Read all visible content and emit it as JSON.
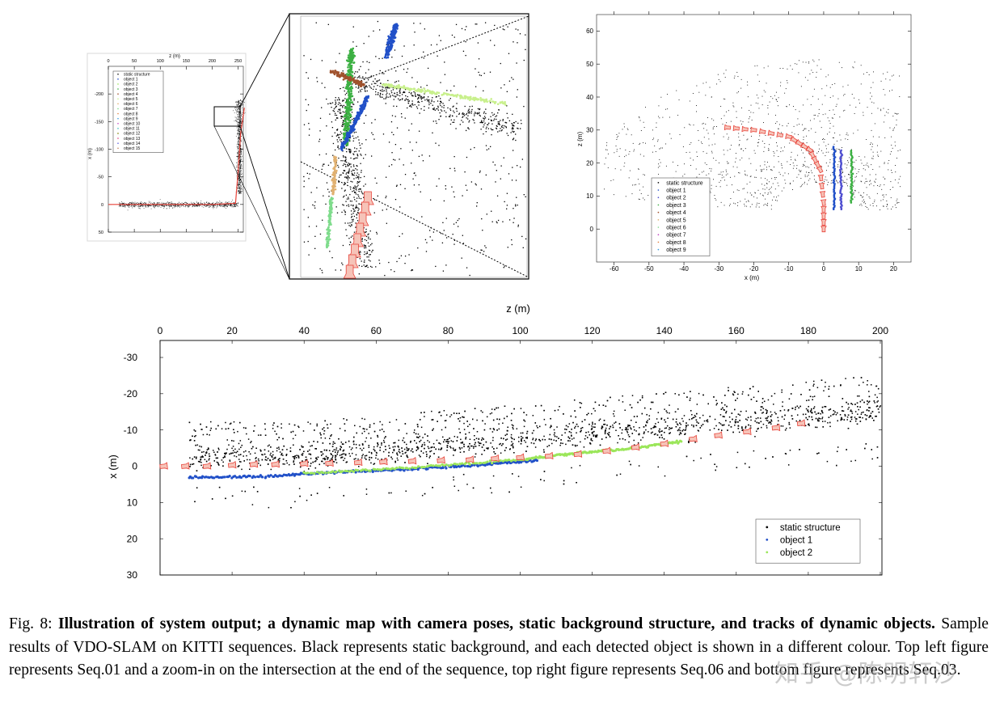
{
  "colors": {
    "static": "#000000",
    "camera": "#e8433a",
    "camera_fill": "#f6c3b8",
    "object1": "#2150c8",
    "object2": "#9be65a",
    "object3": "#3cb043",
    "object4": "#a0522d",
    "object5": "#c8f08c",
    "object6": "#e0b070",
    "object7": "#7fdc8c"
  },
  "chart_data": [
    {
      "id": "seq01_overview",
      "type": "scatter",
      "title": "",
      "xlabel": "z (m)",
      "ylabel": "x (m)",
      "xlim": [
        0,
        260
      ],
      "ylim": [
        50,
        -250
      ],
      "x_ticks": [
        "0",
        "50",
        "100",
        "150",
        "200",
        "250"
      ],
      "y_ticks": [
        "-200",
        "-150",
        "-100",
        "-50",
        "0",
        "50"
      ],
      "legend": [
        "static structure",
        "object  1",
        "object  2",
        "object  3",
        "object  4",
        "object  5",
        "object  6",
        "object  7",
        "object  8",
        "object  9",
        "object  10",
        "object  11",
        "object  12",
        "object  13",
        "object  14",
        "object  15"
      ],
      "legend_position": "top-left",
      "camera_path": [
        [
          0,
          0
        ],
        [
          100,
          0
        ],
        [
          200,
          0
        ],
        [
          245,
          -2
        ],
        [
          250,
          -60
        ],
        [
          255,
          -130
        ],
        [
          262,
          -175
        ]
      ],
      "grid": false
    },
    {
      "id": "seq01_zoom",
      "type": "scatter",
      "title": "",
      "xlabel": "",
      "ylabel": "",
      "description_series": [
        "static structure",
        "object tracks",
        "camera poses"
      ],
      "grid": false
    },
    {
      "id": "seq06",
      "type": "scatter",
      "title": "",
      "xlabel": "x (m)",
      "ylabel": "z (m)",
      "xlim": [
        -65,
        25
      ],
      "ylim": [
        -10,
        65
      ],
      "x_ticks": [
        "-60",
        "-50",
        "-40",
        "-30",
        "-20",
        "-10",
        "0",
        "10",
        "20"
      ],
      "y_ticks": [
        "0",
        "10",
        "20",
        "30",
        "40",
        "50",
        "60"
      ],
      "legend": [
        "static structure",
        "object  1",
        "object  2",
        "object  3",
        "object  4",
        "object  5",
        "object  6",
        "object  7",
        "object  8",
        "object  9"
      ],
      "legend_position": "bottom-left",
      "camera_path": [
        [
          0,
          0
        ],
        [
          0,
          8
        ],
        [
          -1,
          18
        ],
        [
          -4,
          24
        ],
        [
          -10,
          28
        ],
        [
          -20,
          30
        ],
        [
          -30,
          31
        ]
      ],
      "object_tracks": [
        {
          "name": "object  1",
          "x": 3,
          "z_range": [
            6,
            25
          ]
        },
        {
          "name": "object  2",
          "x": 5,
          "z_range": [
            6,
            24
          ]
        },
        {
          "name": "object  3",
          "x": 8,
          "z_range": [
            8,
            24
          ]
        }
      ],
      "grid": false
    },
    {
      "id": "seq03",
      "type": "scatter",
      "title": "",
      "xlabel": "z (m)",
      "ylabel": "x (m)",
      "xlim": [
        0,
        200
      ],
      "ylim": [
        30,
        -30
      ],
      "x_ticks": [
        "0",
        "20",
        "40",
        "60",
        "80",
        "100",
        "120",
        "140",
        "160",
        "180",
        "200"
      ],
      "y_ticks": [
        "-30",
        "-20",
        "-10",
        "0",
        "10",
        "20",
        "30"
      ],
      "legend": [
        "static structure",
        "object  1",
        "object  2"
      ],
      "legend_position": "bottom-right",
      "camera_path": [
        [
          1,
          0
        ],
        [
          7,
          0
        ],
        [
          13,
          0
        ],
        [
          20,
          -0.3
        ],
        [
          26,
          -0.5
        ],
        [
          32,
          -0.5
        ],
        [
          40,
          -0.7
        ],
        [
          47,
          -0.8
        ],
        [
          55,
          -1
        ],
        [
          62,
          -1.2
        ],
        [
          70,
          -1.4
        ],
        [
          78,
          -1.6
        ],
        [
          86,
          -1.8
        ],
        [
          93,
          -2.1
        ],
        [
          100,
          -2.4
        ],
        [
          108,
          -2.8
        ],
        [
          116,
          -3.3
        ],
        [
          124,
          -4.2
        ],
        [
          132,
          -5.2
        ],
        [
          140,
          -6.2
        ],
        [
          148,
          -7.5
        ],
        [
          155,
          -8.5
        ],
        [
          163,
          -9.5
        ],
        [
          171,
          -10.6
        ],
        [
          178,
          -11.8
        ]
      ],
      "object_tracks": [
        {
          "name": "object  1",
          "points": [
            [
              8,
              3.1
            ],
            [
              30,
              2.8
            ],
            [
              50,
              1.6
            ],
            [
              70,
              0.8
            ],
            [
              90,
              -0.5
            ],
            [
              105,
              -1.6
            ]
          ]
        },
        {
          "name": "object  2",
          "points": [
            [
              40,
              2.0
            ],
            [
              70,
              0.4
            ],
            [
              100,
              -1.8
            ],
            [
              115,
              -3.5
            ],
            [
              130,
              -4.8
            ],
            [
              145,
              -6.8
            ]
          ]
        }
      ],
      "grid": false
    }
  ],
  "caption": {
    "label": "Fig. 8:",
    "bold": "Illustration of system output; a dynamic map with camera poses, static background structure, and tracks of dynamic objects.",
    "body": "Sample results of VDO-SLAM on KITTI sequences. Black represents static background, and each detected object is shown in a different colour. Top left figure represents Seq.01 and a zoom-in on the intersection at the end of the sequence, top right figure represents Seq.06 and bottom figure represents Seq.03."
  },
  "watermark": "知乎 @陈明轩沙"
}
